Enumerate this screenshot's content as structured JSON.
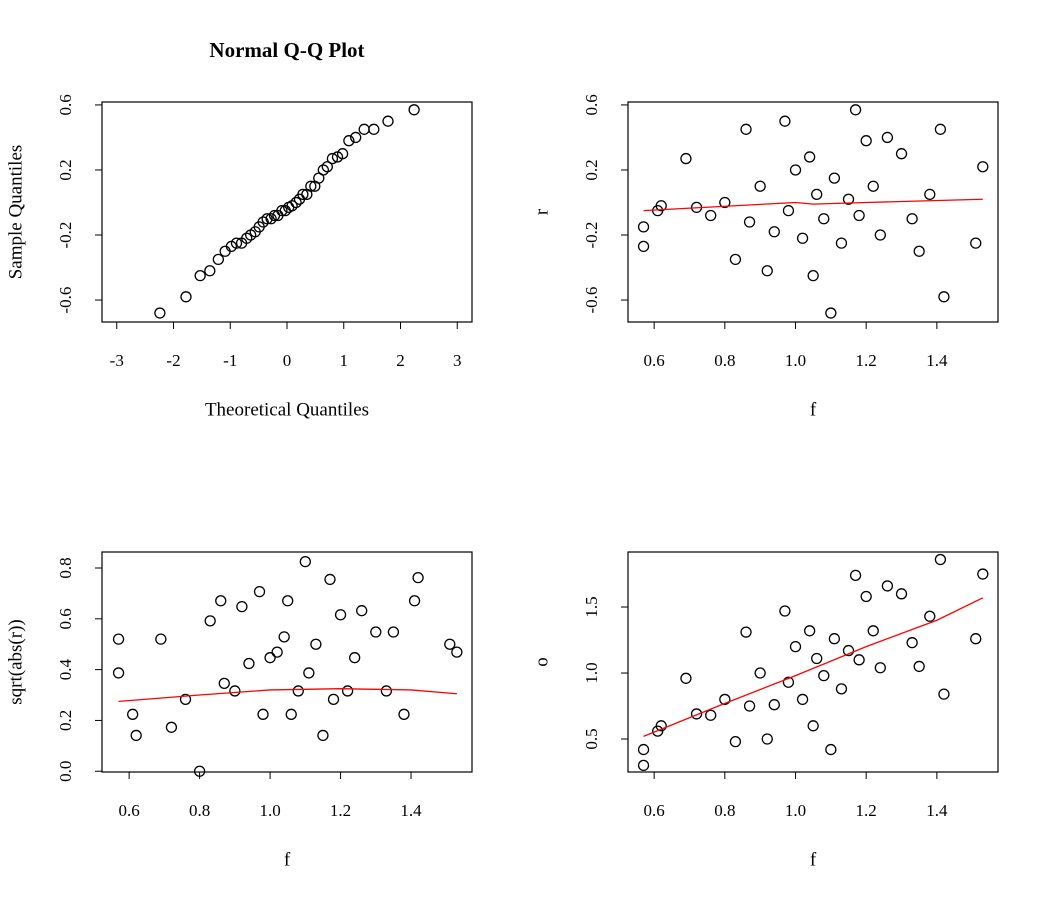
{
  "chart_data": [
    {
      "type": "scatter",
      "title": "Normal Q-Q Plot",
      "xlabel": "Theoretical Quantiles",
      "ylabel": "Sample Quantiles",
      "xlim": [
        -3.26,
        3.26
      ],
      "ylim": [
        -0.735,
        0.618
      ],
      "xticks": [
        -3,
        -2,
        -1,
        0,
        1,
        2,
        3
      ],
      "yticks": [
        -0.6,
        -0.2,
        0.2,
        0.6
      ],
      "series": [
        {
          "type": "scatter",
          "color": "#000000",
          "x": [
            -2.24,
            -1.78,
            -1.53,
            -1.36,
            -1.21,
            -1.09,
            -0.98,
            -0.89,
            -0.8,
            -0.71,
            -0.64,
            -0.56,
            -0.49,
            -0.42,
            -0.35,
            -0.28,
            -0.22,
            -0.16,
            -0.09,
            -0.03,
            0.03,
            0.09,
            0.16,
            0.22,
            0.28,
            0.35,
            0.42,
            0.49,
            0.56,
            0.64,
            0.71,
            0.8,
            0.89,
            0.98,
            1.09,
            1.21,
            1.36,
            1.53,
            1.78,
            2.24
          ],
          "values": [
            -0.68,
            -0.58,
            -0.45,
            -0.42,
            -0.35,
            -0.3,
            -0.27,
            -0.25,
            -0.25,
            -0.22,
            -0.2,
            -0.18,
            -0.15,
            -0.12,
            -0.1,
            -0.1,
            -0.08,
            -0.08,
            -0.05,
            -0.05,
            -0.03,
            -0.02,
            0,
            0.02,
            0.05,
            0.05,
            0.1,
            0.1,
            0.15,
            0.2,
            0.22,
            0.27,
            0.28,
            0.3,
            0.38,
            0.4,
            0.45,
            0.45,
            0.5,
            0.57
          ]
        }
      ]
    },
    {
      "type": "scatter",
      "xlabel": "f",
      "ylabel": "r",
      "xlim": [
        0.526,
        1.573
      ],
      "ylim": [
        -0.735,
        0.618
      ],
      "xticks": [
        0.6,
        0.8,
        {
          "value": 1,
          "label": "1.0"
        },
        1.2,
        1.4
      ],
      "yticks": [
        -0.6,
        -0.2,
        0.2,
        0.6
      ],
      "series": [
        {
          "type": "scatter",
          "color": "#000000",
          "x": [
            0.57,
            0.57,
            0.61,
            0.62,
            0.69,
            0.72,
            0.76,
            0.8,
            0.83,
            0.86,
            0.87,
            0.9,
            0.92,
            0.94,
            0.97,
            0.98,
            1.0,
            1.02,
            1.04,
            1.05,
            1.06,
            1.08,
            1.1,
            1.11,
            1.13,
            1.15,
            1.17,
            1.18,
            1.2,
            1.22,
            1.24,
            1.26,
            1.3,
            1.33,
            1.35,
            1.38,
            1.41,
            1.42,
            1.51,
            1.53
          ],
          "values": [
            -0.15,
            -0.27,
            -0.05,
            -0.02,
            0.27,
            -0.03,
            -0.08,
            0,
            -0.35,
            0.45,
            -0.12,
            0.1,
            -0.42,
            -0.18,
            0.5,
            -0.05,
            0.2,
            -0.22,
            0.28,
            -0.45,
            0.05,
            -0.1,
            -0.68,
            0.15,
            -0.25,
            0.02,
            0.57,
            -0.08,
            0.38,
            0.1,
            -0.2,
            0.4,
            0.3,
            -0.1,
            -0.3,
            0.05,
            0.45,
            -0.58,
            -0.25,
            0.22
          ]
        },
        {
          "type": "line",
          "color": "#ff0000",
          "x": [
            0.57,
            1.0,
            1.05,
            1.2,
            1.53
          ],
          "values": [
            -0.05,
            0.0,
            -0.01,
            0.0,
            0.02
          ]
        }
      ]
    },
    {
      "type": "scatter",
      "xlabel": "f",
      "ylabel": "sqrt(abs(r))",
      "xlim": [
        0.523,
        1.573
      ],
      "ylim": [
        -0.003,
        0.863
      ],
      "xticks": [
        0.6,
        0.8,
        {
          "value": 1,
          "label": "1.0"
        },
        1.2,
        1.4
      ],
      "yticks": [
        {
          "value": 0,
          "label": "0.0"
        },
        0.2,
        0.4,
        0.6,
        0.8
      ],
      "series": [
        {
          "type": "scatter",
          "color": "#000000",
          "x": [
            0.57,
            0.57,
            0.61,
            0.62,
            0.69,
            0.72,
            0.76,
            0.8,
            0.83,
            0.86,
            0.87,
            0.9,
            0.92,
            0.94,
            0.97,
            0.98,
            1.0,
            1.02,
            1.04,
            1.05,
            1.06,
            1.08,
            1.1,
            1.11,
            1.13,
            1.15,
            1.17,
            1.18,
            1.2,
            1.22,
            1.24,
            1.26,
            1.3,
            1.33,
            1.35,
            1.38,
            1.41,
            1.42,
            1.51,
            1.53
          ],
          "values": [
            0.387,
            0.52,
            0.224,
            0.141,
            0.52,
            0.173,
            0.283,
            0,
            0.592,
            0.671,
            0.346,
            0.316,
            0.648,
            0.424,
            0.707,
            0.224,
            0.447,
            0.469,
            0.529,
            0.671,
            0.224,
            0.316,
            0.825,
            0.387,
            0.5,
            0.141,
            0.755,
            0.283,
            0.616,
            0.316,
            0.447,
            0.632,
            0.548,
            0.316,
            0.548,
            0.224,
            0.671,
            0.762,
            0.5,
            0.469
          ]
        },
        {
          "type": "line",
          "color": "#ff0000",
          "x": [
            0.57,
            0.8,
            1.0,
            1.2,
            1.4,
            1.53
          ],
          "values": [
            0.275,
            0.3,
            0.32,
            0.325,
            0.32,
            0.305
          ]
        }
      ]
    },
    {
      "type": "scatter",
      "xlabel": "f",
      "ylabel": "o",
      "xlim": [
        0.526,
        1.573
      ],
      "ylim": [
        0.25,
        1.917
      ],
      "xticks": [
        0.6,
        0.8,
        {
          "value": 1,
          "label": "1.0"
        },
        1.2,
        1.4
      ],
      "yticks": [
        0.5,
        {
          "value": 1,
          "label": "1.0"
        },
        1.5
      ],
      "series": [
        {
          "type": "scatter",
          "color": "#000000",
          "x": [
            0.57,
            0.57,
            0.61,
            0.62,
            0.69,
            0.72,
            0.76,
            0.8,
            0.83,
            0.86,
            0.87,
            0.9,
            0.92,
            0.94,
            0.97,
            0.98,
            1.0,
            1.02,
            1.04,
            1.05,
            1.06,
            1.08,
            1.1,
            1.11,
            1.13,
            1.15,
            1.17,
            1.18,
            1.2,
            1.22,
            1.24,
            1.26,
            1.3,
            1.33,
            1.35,
            1.38,
            1.41,
            1.42,
            1.51,
            1.53
          ],
          "values": [
            0.42,
            0.3,
            0.56,
            0.6,
            0.96,
            0.69,
            0.68,
            0.8,
            0.48,
            1.31,
            0.75,
            1.0,
            0.5,
            0.76,
            1.47,
            0.93,
            1.2,
            0.8,
            1.32,
            0.6,
            1.11,
            0.98,
            0.42,
            1.26,
            0.88,
            1.17,
            1.74,
            1.1,
            1.58,
            1.32,
            1.04,
            1.66,
            1.6,
            1.23,
            1.05,
            1.43,
            1.86,
            0.84,
            1.26,
            1.75
          ]
        },
        {
          "type": "line",
          "color": "#ff0000",
          "x": [
            0.57,
            0.8,
            1.0,
            1.2,
            1.4,
            1.53
          ],
          "values": [
            0.52,
            0.77,
            0.98,
            1.2,
            1.4,
            1.57
          ]
        }
      ]
    }
  ]
}
